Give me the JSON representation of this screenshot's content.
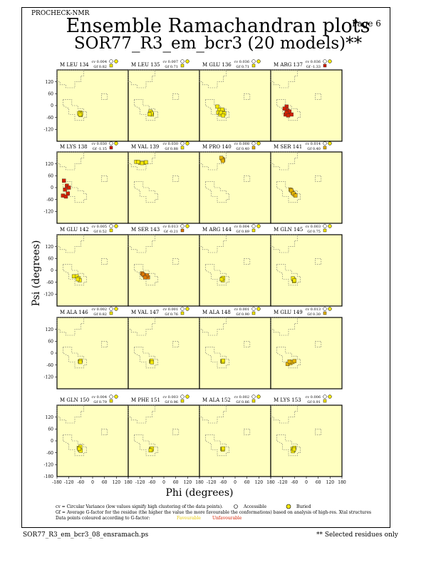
{
  "header": {
    "program": "PROCHECK-NMR",
    "page": "Page  6",
    "title": "Ensemble Ramachandran plots",
    "subtitle": "SOR77_R3_em_bcr3 (20 models)**"
  },
  "footer": {
    "filename": "SOR77_R3_em_bcr3_08_ensramach.ps",
    "note": "** Selected residues only"
  },
  "legend": {
    "cv_line": "cv = Circular Variance (low values signify high clustering of the data points).",
    "gf_line": "Gf = Average G-factor for the residue (the higher the value the more favourable the conformations) based on analysis of high-res. Xtal structures",
    "color_line": "Data points coloured according to G-factor:",
    "accessible": "Accessible",
    "buried": "Buried",
    "favourable": "Favourable",
    "unfavourable": "Unfavourable",
    "colors": {
      "favourable": "#f2e600",
      "unfavourable": "#d42000",
      "panel_bg": "#ffffc0"
    }
  },
  "chart_data": {
    "type": "scatter",
    "title": "Ensemble Ramachandran plots",
    "xlabel": "Phi (degrees)",
    "ylabel": "Psi (degrees)",
    "xlim": [
      -180,
      180
    ],
    "ylim": [
      -180,
      180
    ],
    "xticks": [
      -180,
      -120,
      -60,
      0,
      60,
      120,
      180
    ],
    "yticks": [
      -180,
      -120,
      -60,
      0,
      60,
      120
    ],
    "panel_yticks": [
      120,
      60,
      0,
      -60,
      -120
    ],
    "legend_labels": [
      "Accessible",
      "Buried",
      "Favourable",
      "Unfavourable"
    ],
    "residues": [
      {
        "label": "M LEU 134",
        "cv": "cv 0.004",
        "gf": "Gf 0.82",
        "gf_value": 0.82,
        "points": [
          [
            -65,
            -42
          ],
          [
            -62,
            -35
          ],
          [
            -60,
            -48
          ],
          [
            -58,
            -40
          ],
          [
            -68,
            -38
          ],
          [
            -63,
            -45
          ]
        ]
      },
      {
        "label": "M LEU 135",
        "cv": "cv 0.007",
        "gf": "Gf 0.71",
        "gf_value": 0.71,
        "points": [
          [
            -70,
            -40
          ],
          [
            -65,
            -35
          ],
          [
            -60,
            -45
          ],
          [
            -68,
            -30
          ],
          [
            -62,
            -38
          ],
          [
            -72,
            -44
          ]
        ]
      },
      {
        "label": "M GLU 136",
        "cv": "cv 0.036",
        "gf": "Gf 0.71",
        "gf_value": 0.71,
        "points": [
          [
            -80,
            -20
          ],
          [
            -70,
            -40
          ],
          [
            -60,
            -30
          ],
          [
            -85,
            -35
          ],
          [
            -75,
            -45
          ],
          [
            -55,
            -40
          ],
          [
            -65,
            -20
          ],
          [
            -90,
            -5
          ],
          [
            -72,
            -35
          ],
          [
            -60,
            -50
          ]
        ]
      },
      {
        "label": "M ARG 137",
        "cv": "cv 0.036",
        "gf": "Gf -1.33",
        "gf_value": -1.33,
        "points": [
          [
            -100,
            -5
          ],
          [
            -95,
            -25
          ],
          [
            -90,
            -40
          ],
          [
            -105,
            -45
          ],
          [
            -85,
            -30
          ],
          [
            -110,
            -15
          ],
          [
            -75,
            -45
          ],
          [
            -100,
            -35
          ],
          [
            -92,
            -50
          ]
        ]
      },
      {
        "label": "M LYS 138",
        "cv": "cv 0.030",
        "gf": "Gf -1.15",
        "gf_value": -1.15,
        "points": [
          [
            -150,
            -40
          ],
          [
            -140,
            -10
          ],
          [
            -130,
            10
          ],
          [
            -145,
            35
          ],
          [
            -125,
            -30
          ],
          [
            -135,
            -45
          ],
          [
            -120,
            0
          ]
        ]
      },
      {
        "label": "M VAL 139",
        "cv": "cv 0.030",
        "gf": "Gf 0.88",
        "gf_value": 0.88,
        "points": [
          [
            -140,
            130
          ],
          [
            -120,
            125
          ],
          [
            -100,
            125
          ],
          [
            -130,
            130
          ],
          [
            -90,
            128
          ],
          [
            -110,
            124
          ]
        ]
      },
      {
        "label": "M PRO 140",
        "cv": "cv 0.008",
        "gf": "Gf 0.40",
        "gf_value": 0.4,
        "points": [
          [
            -65,
            145
          ],
          [
            -60,
            140
          ],
          [
            -70,
            150
          ],
          [
            -62,
            135
          ]
        ]
      },
      {
        "label": "M SER 141",
        "cv": "cv 0.014",
        "gf": "Gf 0.40",
        "gf_value": 0.4,
        "points": [
          [
            -80,
            -10
          ],
          [
            -70,
            -25
          ],
          [
            -60,
            -35
          ],
          [
            -75,
            -15
          ],
          [
            -65,
            -30
          ],
          [
            -55,
            -40
          ]
        ]
      },
      {
        "label": "M GLU 142",
        "cv": "cv 0.005",
        "gf": "Gf 0.52",
        "gf_value": 0.52,
        "points": [
          [
            -95,
            -30
          ],
          [
            -80,
            -30
          ],
          [
            -70,
            -40
          ],
          [
            -65,
            -50
          ],
          [
            -75,
            -45
          ]
        ]
      },
      {
        "label": "M SER 143",
        "cv": "cv 0.013",
        "gf": "Gf -0.21",
        "gf_value": -0.21,
        "points": [
          [
            -110,
            -15
          ],
          [
            -100,
            -25
          ],
          [
            -90,
            -30
          ],
          [
            -80,
            -35
          ],
          [
            -105,
            -20
          ],
          [
            -85,
            -25
          ],
          [
            -95,
            -35
          ]
        ]
      },
      {
        "label": "M ARG 144",
        "cv": "cv 0.004",
        "gf": "Gf 0.89",
        "gf_value": 0.89,
        "points": [
          [
            -65,
            -42
          ],
          [
            -62,
            -50
          ],
          [
            -60,
            -38
          ],
          [
            -68,
            -45
          ]
        ]
      },
      {
        "label": "M GLN 145",
        "cv": "cv 0.003",
        "gf": "Gf 0.75",
        "gf_value": 0.75,
        "points": [
          [
            -65,
            -45
          ],
          [
            -62,
            -55
          ],
          [
            -68,
            -40
          ],
          [
            -60,
            -50
          ]
        ]
      },
      {
        "label": "M ALA 146",
        "cv": "cv 0.002",
        "gf": "Gf 0.82",
        "gf_value": 0.82,
        "points": [
          [
            -65,
            -42
          ],
          [
            -60,
            -38
          ],
          [
            -62,
            -45
          ]
        ]
      },
      {
        "label": "M VAL 147",
        "cv": "cv 0.001",
        "gf": "Gf 0.76",
        "gf_value": 0.76,
        "points": [
          [
            -65,
            -42
          ],
          [
            -62,
            -38
          ],
          [
            -60,
            -46
          ]
        ]
      },
      {
        "label": "M ALA 148",
        "cv": "cv 0.001",
        "gf": "Gf 0.90",
        "gf_value": 0.9,
        "points": [
          [
            -65,
            -40
          ],
          [
            -62,
            -44
          ],
          [
            -60,
            -38
          ]
        ]
      },
      {
        "label": "M GLU 149",
        "cv": "cv 0.013",
        "gf": "Gf 0.30",
        "gf_value": 0.3,
        "points": [
          [
            -95,
            -55
          ],
          [
            -80,
            -50
          ],
          [
            -70,
            -45
          ],
          [
            -60,
            -40
          ],
          [
            -85,
            -42
          ]
        ]
      },
      {
        "label": "M GLN 150",
        "cv": "cv 0.004",
        "gf": "Gf 0.79",
        "gf_value": 0.79,
        "points": [
          [
            -70,
            -35
          ],
          [
            -65,
            -45
          ],
          [
            -62,
            -30
          ],
          [
            -60,
            -50
          ],
          [
            -68,
            -40
          ]
        ]
      },
      {
        "label": "M PHE 151",
        "cv": "cv 0.003",
        "gf": "Gf 0.96",
        "gf_value": 0.96,
        "points": [
          [
            -65,
            -40
          ],
          [
            -62,
            -45
          ],
          [
            -60,
            -38
          ],
          [
            -67,
            -48
          ]
        ]
      },
      {
        "label": "M ALA 152",
        "cv": "cv 0.002",
        "gf": "Gf 0.86",
        "gf_value": 0.86,
        "points": [
          [
            -65,
            -40
          ],
          [
            -62,
            -44
          ],
          [
            -60,
            -38
          ]
        ]
      },
      {
        "label": "M LYS 153",
        "cv": "cv 0.006",
        "gf": "Gf 0.91",
        "gf_value": 0.91,
        "points": [
          [
            -70,
            -40
          ],
          [
            -65,
            -48
          ],
          [
            -60,
            -35
          ],
          [
            -68,
            -52
          ],
          [
            -62,
            -42
          ]
        ]
      }
    ]
  }
}
